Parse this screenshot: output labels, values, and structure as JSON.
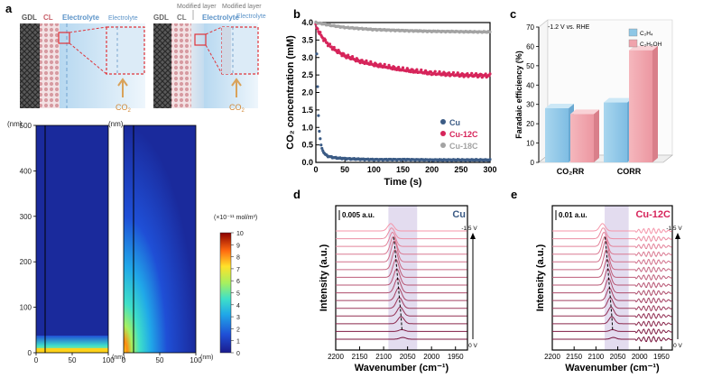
{
  "panel_labels": {
    "a": "a",
    "b": "b",
    "c": "c",
    "d": "d",
    "e": "e"
  },
  "schematic_left": {
    "gdl": "GDL",
    "cl": "CL",
    "electrolyte": "Electrolyte",
    "electrolyte_zoom": "Electrolyte",
    "co2": "CO",
    "co2_sub": "2"
  },
  "schematic_right": {
    "gdl": "GDL",
    "cl": "CL",
    "modified_layer": "Modified layer",
    "modified_layer_zoom": "Modified layer",
    "electrolyte": "Electrolyte",
    "electrolyte_zoom": "Electrolyte",
    "co2": "CO",
    "co2_sub": "2"
  },
  "heatmaps": {
    "y_unit": "(nm)",
    "x_unit": "(nm)",
    "y_ticks": [
      "500",
      "400",
      "300",
      "200",
      "100",
      "0"
    ],
    "x_ticks": [
      "0",
      "50",
      "100"
    ],
    "colorbar_title": "(×10⁻¹¹ mol/m³)",
    "colorbar_ticks": [
      "10",
      "9",
      "8",
      "7",
      "6",
      "5",
      "4",
      "3",
      "2",
      "1",
      "0"
    ],
    "colors": {
      "low": "#1a1a8c",
      "high": "#8b0000"
    }
  },
  "chart_data": [
    {
      "panel": "b",
      "type": "scatter",
      "xlabel": "Time (s)",
      "ylabel": "CO₂ concentration (mM)",
      "xlim": [
        0,
        300
      ],
      "ylim": [
        0,
        4.0
      ],
      "x_ticks": [
        "0",
        "50",
        "100",
        "150",
        "200",
        "250",
        "300"
      ],
      "y_ticks": [
        "0.0",
        "0.5",
        "1.0",
        "1.5",
        "2.0",
        "2.5",
        "3.0",
        "3.5",
        "4.0"
      ],
      "legend_position": "bottom-right",
      "series": [
        {
          "name": "Cu",
          "color": "#3b5b85",
          "x": [
            0,
            2,
            4,
            6,
            8,
            10,
            15,
            20,
            30,
            40,
            60,
            80,
            100,
            150,
            200,
            250,
            300
          ],
          "y": [
            4.0,
            2.8,
            1.5,
            0.9,
            0.6,
            0.4,
            0.25,
            0.18,
            0.14,
            0.12,
            0.1,
            0.09,
            0.08,
            0.08,
            0.07,
            0.07,
            0.07
          ]
        },
        {
          "name": "Cu-12C",
          "color": "#d6245a",
          "x": [
            0,
            5,
            10,
            20,
            30,
            50,
            75,
            100,
            150,
            200,
            250,
            300
          ],
          "y": [
            3.9,
            3.75,
            3.6,
            3.4,
            3.25,
            3.05,
            2.9,
            2.8,
            2.65,
            2.55,
            2.5,
            2.48
          ]
        },
        {
          "name": "Cu-18C",
          "color": "#a3a3a3",
          "x": [
            0,
            10,
            25,
            50,
            100,
            150,
            200,
            250,
            300
          ],
          "y": [
            4.0,
            3.97,
            3.92,
            3.86,
            3.8,
            3.77,
            3.75,
            3.74,
            3.73
          ]
        }
      ]
    },
    {
      "panel": "c",
      "type": "bar",
      "ylabel": "Faradaic efficiency (%)",
      "ylim": [
        0,
        70
      ],
      "y_ticks": [
        "0",
        "10",
        "20",
        "30",
        "40",
        "50",
        "60",
        "70"
      ],
      "categories": [
        "CO₂RR",
        "CORR"
      ],
      "annotation": "-1.2 V vs. RHE",
      "legend_position": "top-right",
      "series": [
        {
          "name": "C₂H₄",
          "color": "#8ec7e6",
          "values": [
            28,
            31
          ]
        },
        {
          "name": "C₂H₅OH",
          "color": "#f0a3ac",
          "values": [
            25,
            58
          ]
        }
      ]
    },
    {
      "panel": "d",
      "type": "line",
      "xlabel": "Wavenumber (cm⁻¹)",
      "ylabel": "Intensity (a.u.)",
      "xlim": [
        2200,
        1925
      ],
      "x_ticks": [
        "2200",
        "2150",
        "2100",
        "2050",
        "2000",
        "1950"
      ],
      "scale_bar": "0.005 a.u.",
      "sample_label": "Cu",
      "potential_top": "-1.5 V",
      "potential_bottom": "0 V",
      "shaded_band": [
        2090,
        2030
      ],
      "series_count": 15
    },
    {
      "panel": "e",
      "type": "line",
      "xlabel": "Wavenumber (cm⁻¹)",
      "ylabel": "Intensity (a.u.)",
      "xlim": [
        2200,
        1925
      ],
      "x_ticks": [
        "2200",
        "2150",
        "2100",
        "2050",
        "2000",
        "1950"
      ],
      "scale_bar": "0.01 a.u.",
      "sample_label": "Cu-12C",
      "potential_top": "-1.5 V",
      "potential_bottom": "0 V",
      "shaded_band": [
        2080,
        2025
      ],
      "series_count": 15
    }
  ]
}
